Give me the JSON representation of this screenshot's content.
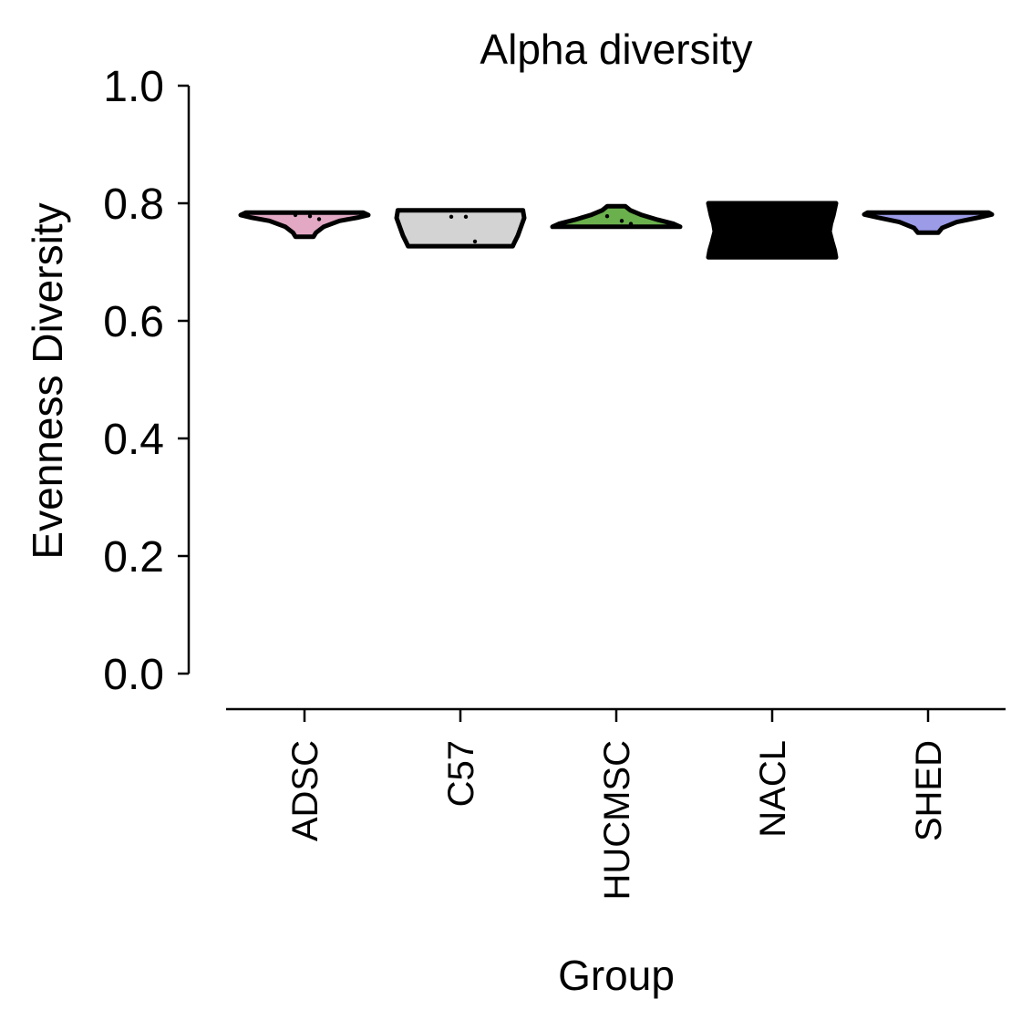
{
  "chart_data": {
    "type": "violin",
    "title": "Alpha diversity",
    "xlabel": "Group",
    "ylabel": "Evenness Diversity",
    "ylim": [
      0.0,
      1.0
    ],
    "yticks": [
      "0.0",
      "0.2",
      "0.4",
      "0.6",
      "0.8",
      "1.0"
    ],
    "grid": false,
    "legend": "none",
    "categories": [
      "ADSC",
      "C57",
      "HUCMSC",
      "NACL",
      "SHED"
    ],
    "groups": [
      {
        "name": "ADSC",
        "color": "#e2a8c4",
        "min": 0.743,
        "max": 0.784,
        "profile": [
          [
            0.743,
            0.14
          ],
          [
            0.75,
            0.18
          ],
          [
            0.76,
            0.3
          ],
          [
            0.77,
            0.55
          ],
          [
            0.776,
            0.85
          ],
          [
            0.78,
            1.0
          ],
          [
            0.784,
            0.92
          ]
        ],
        "points": [
          0.78,
          0.778,
          0.773
        ]
      },
      {
        "name": "C57",
        "color": "#d3d3d3",
        "min": 0.727,
        "max": 0.788,
        "profile": [
          [
            0.727,
            0.82
          ],
          [
            0.734,
            0.85
          ],
          [
            0.745,
            0.9
          ],
          [
            0.76,
            0.95
          ],
          [
            0.775,
            1.0
          ],
          [
            0.788,
            0.98
          ]
        ],
        "points": [
          0.777,
          0.777,
          0.735
        ]
      },
      {
        "name": "HUCMSC",
        "color": "#6ab04c",
        "min": 0.76,
        "max": 0.795,
        "profile": [
          [
            0.76,
            1.0
          ],
          [
            0.765,
            0.9
          ],
          [
            0.772,
            0.65
          ],
          [
            0.78,
            0.4
          ],
          [
            0.788,
            0.22
          ],
          [
            0.795,
            0.14
          ]
        ],
        "points": [
          0.778,
          0.77,
          0.765
        ]
      },
      {
        "name": "NACL",
        "color": "#000000",
        "min": 0.708,
        "max": 0.8,
        "profile": [
          [
            0.708,
            1.0
          ],
          [
            0.72,
            0.98
          ],
          [
            0.735,
            0.94
          ],
          [
            0.752,
            0.9
          ],
          [
            0.765,
            0.92
          ],
          [
            0.78,
            0.96
          ],
          [
            0.8,
            1.0
          ]
        ],
        "points": []
      },
      {
        "name": "SHED",
        "color": "#9b9be8",
        "min": 0.75,
        "max": 0.784,
        "profile": [
          [
            0.75,
            0.16
          ],
          [
            0.758,
            0.22
          ],
          [
            0.768,
            0.45
          ],
          [
            0.776,
            0.8
          ],
          [
            0.781,
            1.0
          ],
          [
            0.784,
            0.95
          ]
        ],
        "points": []
      }
    ]
  }
}
